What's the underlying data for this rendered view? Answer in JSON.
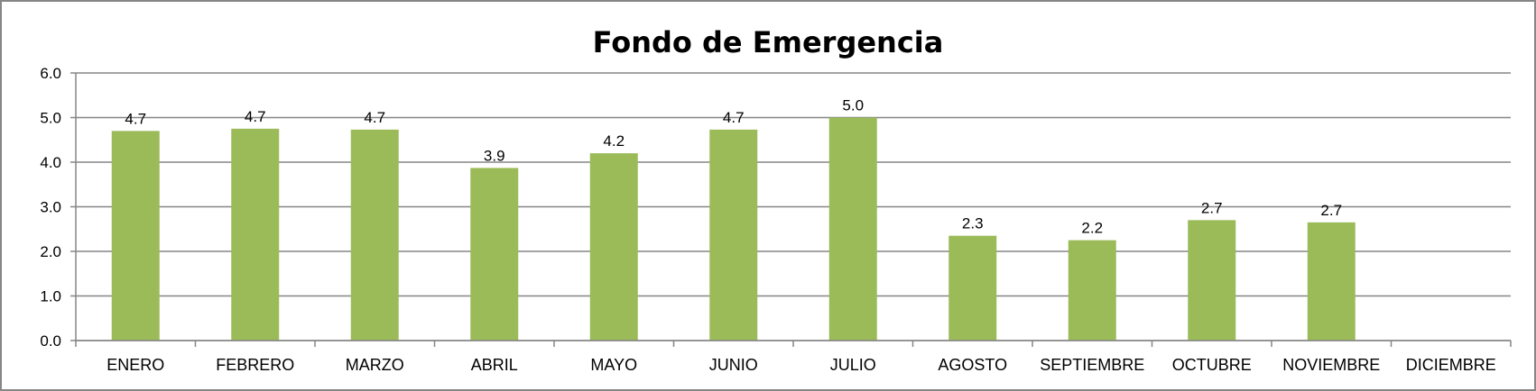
{
  "chart_data": {
    "type": "bar",
    "title": "Fondo de Emergencia",
    "xlabel": "",
    "ylabel": "",
    "categories": [
      "ENERO",
      "FEBRERO",
      "MARZO",
      "ABRIL",
      "MAYO",
      "JUNIO",
      "JULIO",
      "AGOSTO",
      "SEPTIEMBRE",
      "OCTUBRE",
      "NOVIEMBRE",
      "DICIEMBRE"
    ],
    "values": [
      4.7,
      4.75,
      4.73,
      3.87,
      4.2,
      4.73,
      5.0,
      2.35,
      2.25,
      2.7,
      2.65,
      null
    ],
    "data_labels": [
      "4.7",
      "4.7",
      "4.7",
      "3.9",
      "4.2",
      "4.7",
      "5.0",
      "2.3",
      "2.2",
      "2.7",
      "2.7",
      ""
    ],
    "ylim": [
      0,
      6
    ],
    "yticks": [
      "0.0",
      "1.0",
      "2.0",
      "3.0",
      "4.0",
      "5.0",
      "6.0"
    ],
    "grid": true,
    "legend": "none",
    "colors": {
      "bar": "#9BBB59",
      "grid": "#868686",
      "axis": "#868686",
      "frame": "#868686"
    }
  }
}
